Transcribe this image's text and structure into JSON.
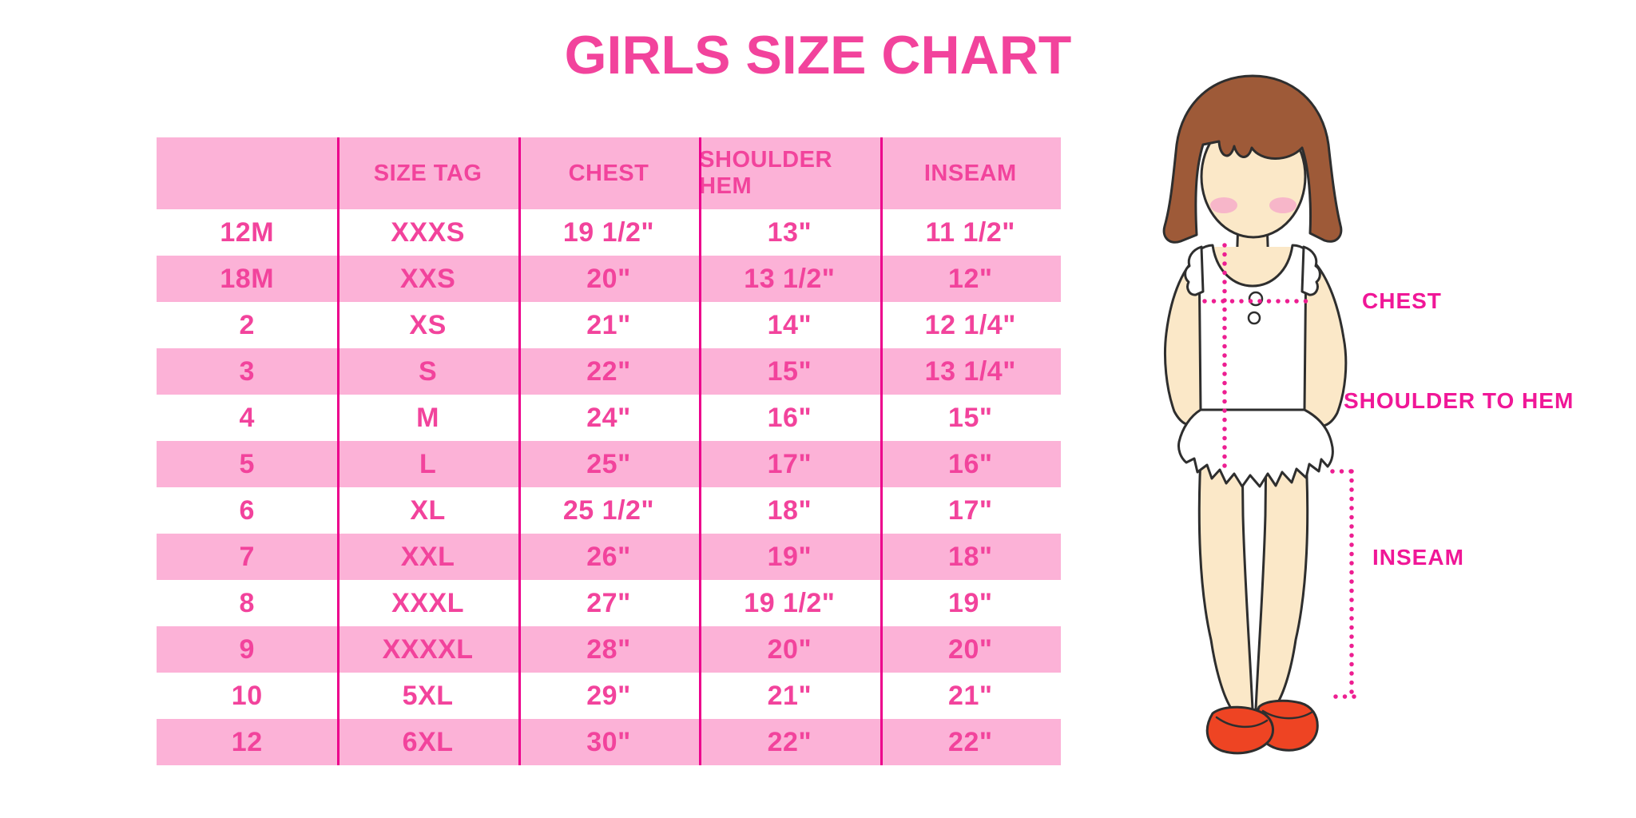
{
  "title": "GIRLS SIZE CHART",
  "chart_data": {
    "type": "table",
    "title": "GIRLS SIZE CHART",
    "headers": [
      "",
      "SIZE TAG",
      "CHEST",
      "SHOULDER HEM",
      "INSEAM"
    ],
    "rows": [
      [
        "12M",
        "XXXS",
        "19 1/2\"",
        "13\"",
        "11 1/2\""
      ],
      [
        "18M",
        "XXS",
        "20\"",
        "13 1/2\"",
        "12\""
      ],
      [
        "2",
        "XS",
        "21\"",
        "14\"",
        "12 1/4\""
      ],
      [
        "3",
        "S",
        "22\"",
        "15\"",
        "13 1/4\""
      ],
      [
        "4",
        "M",
        "24\"",
        "16\"",
        "15\""
      ],
      [
        "5",
        "L",
        "25\"",
        "17\"",
        "16\""
      ],
      [
        "6",
        "XL",
        "25 1/2\"",
        "18\"",
        "17\""
      ],
      [
        "7",
        "XXL",
        "26\"",
        "19\"",
        "18\""
      ],
      [
        "8",
        "XXXL",
        "27\"",
        "19 1/2\"",
        "19\""
      ],
      [
        "9",
        "XXXXL",
        "28\"",
        "20\"",
        "20\""
      ],
      [
        "10",
        "5XL",
        "29\"",
        "21\"",
        "21\""
      ],
      [
        "12",
        "6XL",
        "30\"",
        "22\"",
        "22\""
      ]
    ]
  },
  "figure": {
    "labels": {
      "chest": "CHEST",
      "shoulder_to_hem": "SHOULDER TO HEM",
      "inseam": "INSEAM"
    }
  },
  "colors": {
    "title_text": "#F2439C",
    "table_text": "#F2439C",
    "row_band_pink": "#FCB2D7",
    "column_rule": "#EC008C",
    "measure_dots": "#ED1E91",
    "label_text": "#F01797",
    "hair_brown": "#9E5A38",
    "skin": "#FBE8C8",
    "shoe_red": "#EE4423"
  }
}
